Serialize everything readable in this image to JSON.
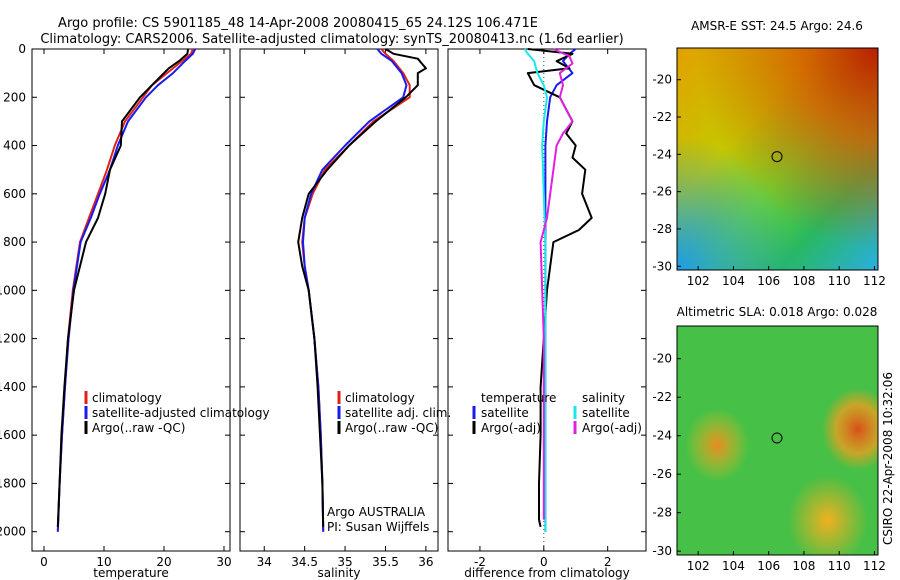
{
  "header": {
    "line1": "Argo profile: CS 5901185_48 14-Apr-2008 20080415_65 24.12S 106.471E",
    "line2": "Climatology: CARS2006. Satellite-adjusted climatology: synTS_20080413.nc (1.6d earlier)"
  },
  "side_label": "CSIRO 22-Apr-2008 10:32:06",
  "colors": {
    "climatology": "#e0201a",
    "satellite": "#1a1aee",
    "argo": "#000000",
    "sal_satellite": "#19e8e8",
    "sal_argo": "#e020e0"
  },
  "chart_data": [
    {
      "type": "line",
      "panel": "temperature",
      "xlabel": "temperature",
      "ylabel": "",
      "xlim": [
        -2,
        31
      ],
      "ylim": [
        2080,
        0
      ],
      "x_ticks": [
        0,
        10,
        20,
        30
      ],
      "y_ticks": [
        0,
        200,
        400,
        600,
        800,
        1000,
        1200,
        1400,
        1600,
        1800,
        2000
      ],
      "legend": [
        "climatology",
        "satellite-adjusted climatology",
        "Argo(..raw -QC)"
      ],
      "series": [
        {
          "name": "climatology",
          "color": "#e0201a",
          "depth": [
            0,
            20,
            50,
            100,
            150,
            200,
            300,
            400,
            500,
            600,
            700,
            800,
            1000,
            1200,
            1400,
            1600,
            1800,
            2000
          ],
          "values": [
            24.8,
            24.5,
            23.0,
            20.5,
            18.0,
            16.5,
            13.5,
            11.8,
            10.5,
            9.0,
            7.5,
            6.0,
            4.8,
            4.0,
            3.5,
            3.0,
            2.6,
            2.3
          ]
        },
        {
          "name": "satellite-adjusted climatology",
          "color": "#1a1aee",
          "depth": [
            0,
            20,
            50,
            100,
            150,
            200,
            300,
            400,
            500,
            600,
            700,
            800,
            1000,
            1200,
            1400,
            1600,
            1800,
            2000
          ],
          "values": [
            25.2,
            24.8,
            23.5,
            21.5,
            19.0,
            17.0,
            14.0,
            12.3,
            11.0,
            9.3,
            7.8,
            6.1,
            4.9,
            4.1,
            3.5,
            3.0,
            2.6,
            2.3
          ]
        },
        {
          "name": "Argo(..raw -QC)",
          "color": "#000000",
          "depth": [
            0,
            20,
            50,
            80,
            100,
            150,
            200,
            300,
            400,
            500,
            600,
            700,
            800,
            1000,
            1200,
            1400,
            1600,
            1800,
            1980
          ],
          "values": [
            24.0,
            23.9,
            22.5,
            20.8,
            20.0,
            18.0,
            16.0,
            13.0,
            12.8,
            11.0,
            10.2,
            9.0,
            7.0,
            5.0,
            4.0,
            3.4,
            2.9,
            2.6,
            2.3
          ]
        }
      ]
    },
    {
      "type": "line",
      "panel": "salinity",
      "xlabel": "salinity",
      "ylabel": "",
      "xlim": [
        33.7,
        36.15
      ],
      "ylim": [
        2080,
        0
      ],
      "x_ticks": [
        34,
        34.5,
        35,
        35.5,
        36
      ],
      "legend": [
        "climatology",
        "satellite adj. clim.",
        "Argo(..raw -QC)"
      ],
      "annotations": [
        "Argo AUSTRALIA",
        "PI: Susan Wijffels"
      ],
      "series": [
        {
          "name": "climatology",
          "color": "#e0201a",
          "depth": [
            0,
            20,
            50,
            100,
            150,
            200,
            300,
            400,
            500,
            600,
            700,
            800,
            900,
            1000,
            1200,
            1400,
            1600,
            1800,
            2000
          ],
          "values": [
            35.45,
            35.5,
            35.6,
            35.72,
            35.8,
            35.8,
            35.35,
            35.05,
            34.75,
            34.6,
            34.5,
            34.47,
            34.5,
            34.55,
            34.62,
            34.67,
            34.7,
            34.72,
            34.73
          ]
        },
        {
          "name": "satellite adj. clim.",
          "color": "#1a1aee",
          "depth": [
            0,
            20,
            50,
            100,
            150,
            200,
            300,
            400,
            500,
            600,
            700,
            800,
            900,
            1000,
            1200,
            1400,
            1600,
            1800,
            2000
          ],
          "values": [
            35.4,
            35.45,
            35.58,
            35.7,
            35.76,
            35.72,
            35.3,
            35.0,
            34.72,
            34.58,
            34.5,
            34.48,
            34.5,
            34.55,
            34.62,
            34.67,
            34.7,
            34.72,
            34.73
          ]
        },
        {
          "name": "Argo(..raw -QC)",
          "color": "#000000",
          "depth": [
            0,
            20,
            40,
            60,
            80,
            100,
            150,
            200,
            300,
            400,
            500,
            600,
            700,
            800,
            900,
            1000,
            1200,
            1400,
            1600,
            1800,
            1980
          ],
          "values": [
            35.5,
            35.6,
            35.9,
            35.95,
            36.0,
            35.9,
            35.9,
            35.75,
            35.38,
            35.05,
            34.78,
            34.55,
            34.47,
            34.42,
            34.47,
            34.55,
            34.62,
            34.66,
            34.69,
            34.72,
            34.73
          ]
        }
      ]
    },
    {
      "type": "line",
      "panel": "difference",
      "xlabel": "difference from climatology",
      "ylabel": "",
      "xlim": [
        -3,
        3.2
      ],
      "ylim": [
        2080,
        0
      ],
      "x_ticks": [
        -2,
        0,
        2
      ],
      "legend": [
        "temperature",
        "satellite",
        "Argo(-adj)",
        "salinity",
        "satellite",
        "Argo(-adj)"
      ],
      "series": [
        {
          "name": "temperature satellite",
          "color": "#1a1aee",
          "depth": [
            0,
            20,
            50,
            100,
            150,
            200,
            300,
            400,
            600,
            800,
            1000,
            1400,
            2000
          ],
          "values": [
            1.0,
            0.8,
            0.6,
            0.9,
            0.4,
            0.2,
            0.1,
            0.05,
            0.05,
            0.05,
            0.05,
            0.05,
            0.05
          ]
        },
        {
          "name": "temperature Argo(-adj)",
          "color": "#000000",
          "depth": [
            0,
            20,
            50,
            80,
            100,
            150,
            200,
            300,
            350,
            400,
            450,
            500,
            600,
            700,
            750,
            800,
            900,
            1000,
            1200,
            1400,
            1600,
            1800,
            1950,
            1980
          ],
          "values": [
            -0.5,
            0.9,
            0.4,
            0.8,
            -0.5,
            -0.3,
            0.5,
            0.9,
            0.7,
            1.0,
            0.9,
            1.3,
            1.2,
            1.5,
            1.1,
            0.3,
            0.2,
            0.1,
            0.0,
            -0.1,
            -0.1,
            -0.15,
            -0.15,
            -0.1
          ]
        },
        {
          "name": "salinity satellite",
          "color": "#19e8e8",
          "depth": [
            0,
            20,
            50,
            100,
            150,
            200,
            300,
            400,
            600,
            800,
            1000,
            1400,
            1800,
            2000
          ],
          "values": [
            -0.6,
            -0.5,
            -0.3,
            -0.2,
            0.0,
            0.1,
            0.0,
            -0.05,
            0.0,
            0.05,
            0.05,
            0.05,
            0.05,
            0.05
          ]
        },
        {
          "name": "salinity Argo(-adj)",
          "color": "#e020e0",
          "depth": [
            0,
            30,
            60,
            100,
            150,
            200,
            250,
            300,
            350,
            400,
            500,
            600,
            700,
            800,
            1000,
            1200,
            1400,
            1600,
            1800,
            1950
          ],
          "values": [
            0.3,
            0.8,
            0.9,
            0.5,
            0.6,
            0.5,
            0.7,
            0.9,
            0.6,
            0.4,
            0.3,
            0.2,
            0.1,
            -0.1,
            -0.05,
            0.0,
            0.0,
            0.0,
            0.0,
            0.0
          ]
        }
      ]
    }
  ],
  "maps": [
    {
      "title": "AMSR-E SST: 24.5 Argo: 24.6",
      "x_ticks": [
        102,
        104,
        106,
        108,
        110,
        112
      ],
      "y_ticks": [
        -20,
        -22,
        -24,
        -26,
        -28,
        -30
      ],
      "xlim": [
        100.8,
        112.2
      ],
      "ylim": [
        -30.2,
        -18.3
      ],
      "marker": {
        "lon": 106.471,
        "lat": -24.12
      }
    },
    {
      "title": "Altimetric SLA: 0.018 Argo: 0.028",
      "x_ticks": [
        102,
        104,
        106,
        108,
        110,
        112
      ],
      "y_ticks": [
        -20,
        -22,
        -24,
        -26,
        -28,
        -30
      ],
      "xlim": [
        100.8,
        112.2
      ],
      "ylim": [
        -30.2,
        -18.3
      ],
      "marker": {
        "lon": 106.471,
        "lat": -24.12
      }
    }
  ]
}
